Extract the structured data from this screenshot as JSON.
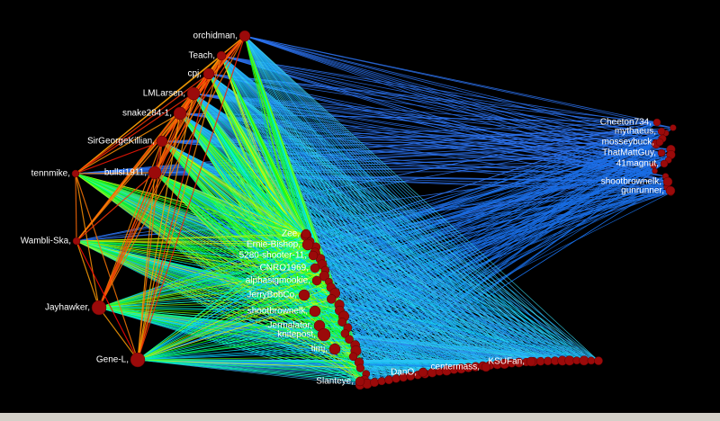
{
  "nodes": [
    {
      "label": "orchidman,"
    },
    {
      "label": "Teach,"
    },
    {
      "label": "cpj,"
    },
    {
      "label": "LMLarsen,"
    },
    {
      "label": "snake284-1,"
    },
    {
      "label": "SirGeorgeKillian,"
    },
    {
      "label": "tennmike,"
    },
    {
      "label": "bullsi1911,"
    },
    {
      "label": "Wambli-Ska,"
    },
    {
      "label": "Jayhawker,"
    },
    {
      "label": "Gene-L,"
    },
    {
      "label": "Zee,"
    },
    {
      "label": "Ernie-Bishop,"
    },
    {
      "label": "5280-shooter-11,"
    },
    {
      "label": "CNRO1969,"
    },
    {
      "label": "alphasigmookie,"
    },
    {
      "label": "JerryBobCo,"
    },
    {
      "label": "shootbrownelk,"
    },
    {
      "label": "Jermalator,"
    },
    {
      "label": "knitepost,"
    },
    {
      "label": "timj,"
    },
    {
      "label": "Slanteye,"
    },
    {
      "label": "Cheeton734,"
    },
    {
      "label": "mythaeus,"
    },
    {
      "label": "mosseybuck,"
    },
    {
      "label": "ThatMattGuy,"
    },
    {
      "label": "41magnut,"
    },
    {
      "label": "shootbrownelk,"
    },
    {
      "label": "gunrunner,"
    },
    {
      "label": "DanO,"
    },
    {
      "label": "centermass,"
    },
    {
      "label": "KSUFan,"
    }
  ]
}
